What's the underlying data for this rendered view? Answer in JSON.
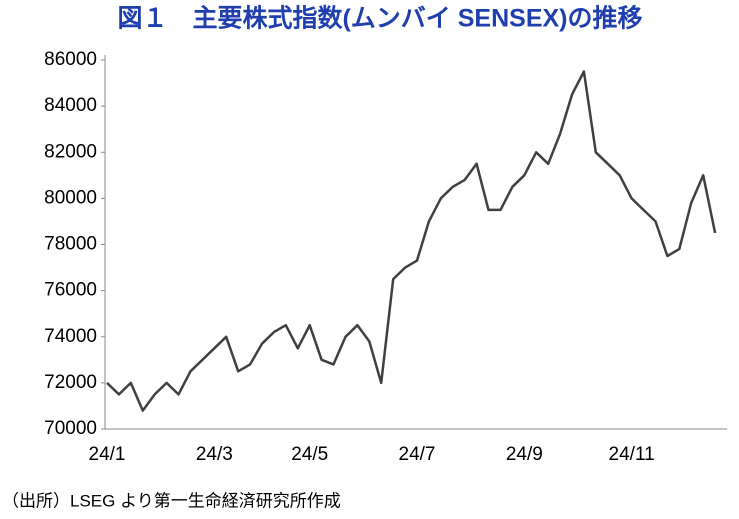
{
  "chart_data": {
    "type": "line",
    "title": "図１　主要株式指数(ムンバイ SENSEX)の推移",
    "source": "（出所）LSEG より第一生命経済研究所作成",
    "categories": [
      "24/1",
      null,
      null,
      null,
      null,
      null,
      null,
      null,
      null,
      "24/3",
      null,
      null,
      null,
      null,
      null,
      null,
      null,
      "24/5",
      null,
      null,
      null,
      null,
      null,
      null,
      null,
      null,
      "24/7",
      null,
      null,
      null,
      null,
      null,
      null,
      null,
      null,
      "24/9",
      null,
      null,
      null,
      null,
      null,
      null,
      null,
      null,
      "24/11",
      null,
      null,
      null,
      null,
      null,
      null,
      null
    ],
    "series": [
      {
        "name": "SENSEX",
        "color": "#404040",
        "values": [
          72000,
          71500,
          72000,
          70800,
          71500,
          72000,
          71500,
          72500,
          73000,
          73500,
          74000,
          72500,
          72800,
          73700,
          74200,
          74500,
          73500,
          74500,
          73000,
          72800,
          74000,
          74500,
          73800,
          72000,
          76500,
          77000,
          77300,
          79000,
          80000,
          80500,
          80800,
          81500,
          79500,
          79500,
          80500,
          81000,
          82000,
          81500,
          82800,
          84500,
          85500,
          82000,
          81500,
          81000,
          80000,
          79500,
          79000,
          77500,
          77800,
          79800,
          81000,
          78500
        ]
      }
    ],
    "ylim": [
      70000,
      86000
    ],
    "yticks": [
      70000,
      72000,
      74000,
      76000,
      78000,
      80000,
      82000,
      84000,
      86000
    ],
    "grid": false
  }
}
